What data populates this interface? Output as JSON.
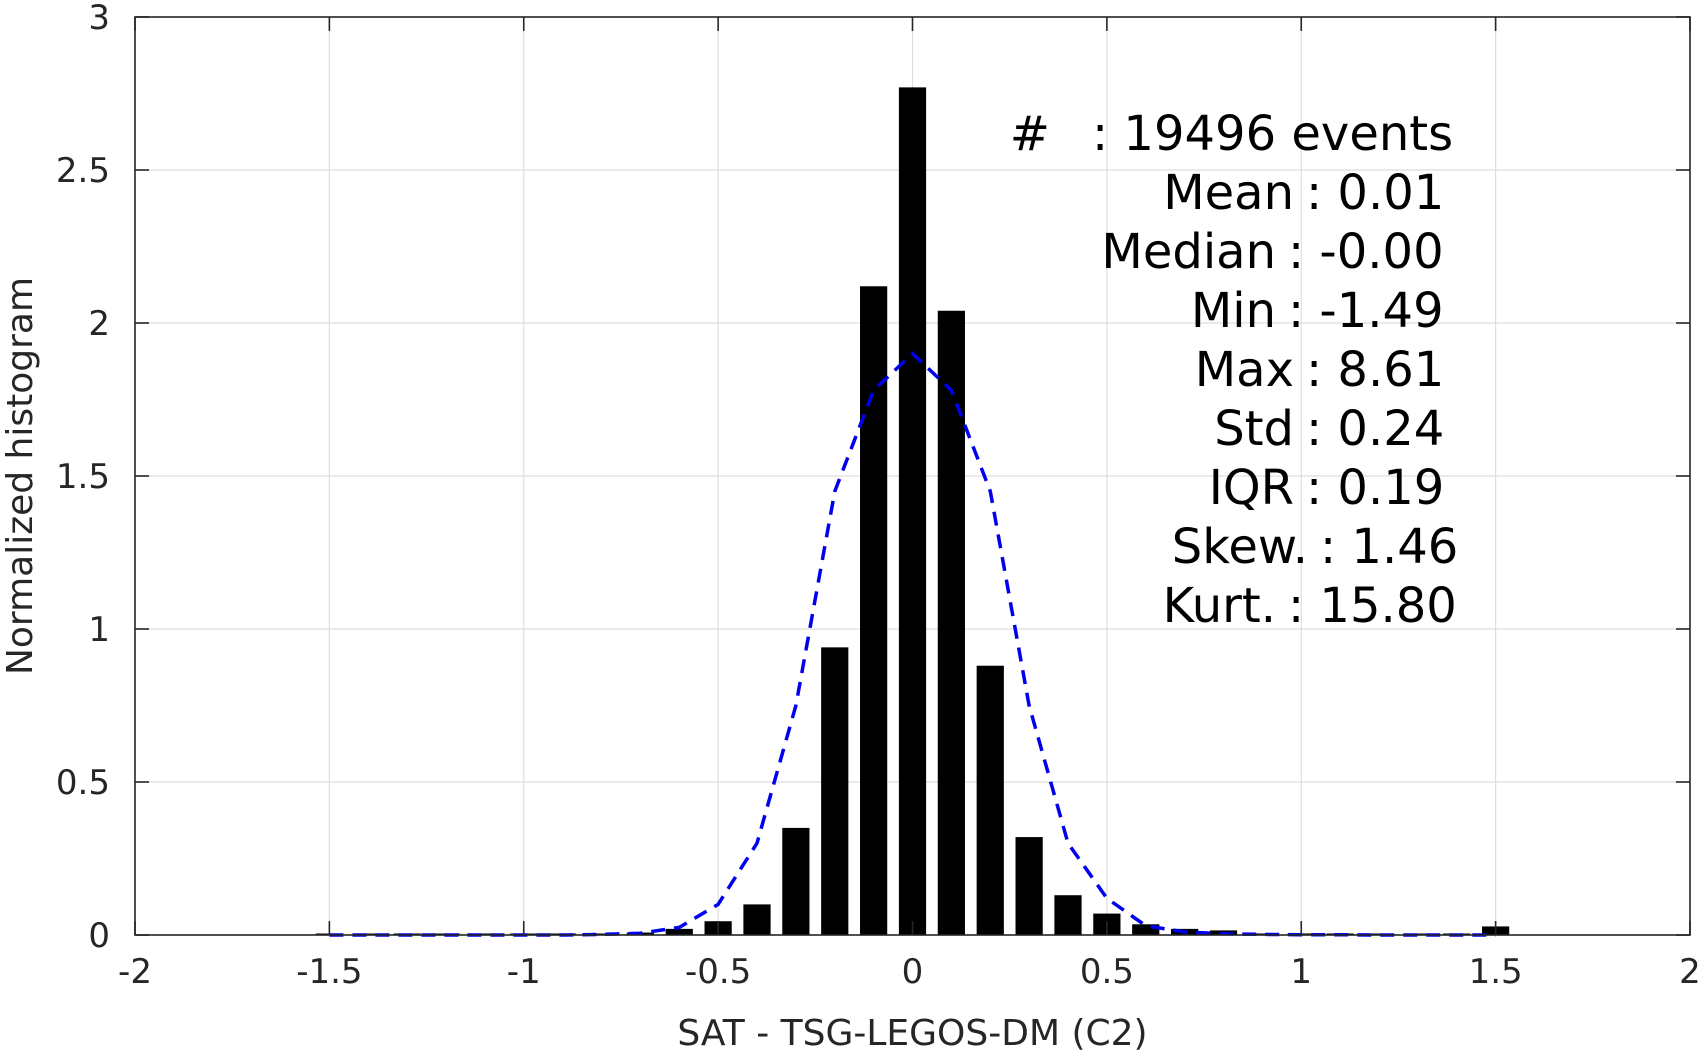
{
  "chart_data": {
    "type": "bar",
    "title": "",
    "xlabel": "SAT - TSG-LEGOS-DM (C2)",
    "ylabel": "Normalized histogram",
    "xlim": [
      -2,
      2
    ],
    "ylim": [
      0,
      3
    ],
    "grid": true,
    "x_ticks": [
      -2,
      -1.5,
      -1,
      -0.5,
      0,
      0.5,
      1,
      1.5,
      2
    ],
    "x_tick_labels": [
      "-2",
      "-1.5",
      "-1",
      "-0.5",
      "0",
      "0.5",
      "1",
      "1.5",
      "2"
    ],
    "y_ticks": [
      0,
      0.5,
      1,
      1.5,
      2,
      2.5,
      3
    ],
    "y_tick_labels": [
      "0",
      "0.5",
      "1",
      "1.5",
      "2",
      "2.5",
      "3"
    ],
    "bar_color": "#000000",
    "bar_width": 0.07,
    "bars": {
      "x": [
        -1.5,
        -1.4,
        -1.3,
        -1.2,
        -1.1,
        -1.0,
        -0.9,
        -0.8,
        -0.7,
        -0.6,
        -0.5,
        -0.4,
        -0.3,
        -0.2,
        -0.1,
        0.0,
        0.1,
        0.2,
        0.3,
        0.4,
        0.5,
        0.6,
        0.7,
        0.8,
        0.9,
        1.0,
        1.1,
        1.2,
        1.3,
        1.4,
        1.5
      ],
      "values": [
        0.002,
        0.001,
        0.001,
        0.001,
        0.001,
        0.001,
        0.002,
        0.005,
        0.008,
        0.02,
        0.045,
        0.1,
        0.35,
        0.94,
        2.12,
        2.77,
        2.04,
        0.88,
        0.32,
        0.13,
        0.07,
        0.035,
        0.02,
        0.015,
        0.005,
        0.005,
        0.005,
        0.003,
        0.002,
        0.002,
        0.028
      ]
    },
    "fit_curve": {
      "style": "dashed",
      "color": "#0000ee",
      "x": [
        -1.5,
        -1.4,
        -1.3,
        -1.2,
        -1.1,
        -1.0,
        -0.9,
        -0.8,
        -0.7,
        -0.6,
        -0.5,
        -0.4,
        -0.3,
        -0.2,
        -0.1,
        0.0,
        0.1,
        0.2,
        0.3,
        0.4,
        0.5,
        0.6,
        0.7,
        0.8,
        0.9,
        1.0,
        1.1,
        1.2,
        1.3,
        1.4,
        1.5
      ],
      "y": [
        0,
        0,
        0,
        0,
        0,
        0,
        0,
        0.002,
        0.006,
        0.025,
        0.1,
        0.3,
        0.75,
        1.45,
        1.78,
        1.9,
        1.78,
        1.45,
        0.75,
        0.3,
        0.12,
        0.03,
        0.01,
        0.004,
        0.002,
        0.001,
        0.001,
        0,
        0,
        0,
        0
      ]
    },
    "annotations": [
      {
        "left": "#",
        "right": ": 19496 events"
      },
      {
        "left": "Mean",
        "right": ": 0.01"
      },
      {
        "left": "Median",
        "right": ": -0.00"
      },
      {
        "left": "Min",
        "right": ": -1.49"
      },
      {
        "left": "Max",
        "right": ": 8.61"
      },
      {
        "left": "Std",
        "right": ": 0.24"
      },
      {
        "left": "IQR",
        "right": ": 0.19"
      },
      {
        "left": "Skew.",
        "right": ": 1.46"
      },
      {
        "left": "Kurt.",
        "right": ": 15.80"
      }
    ]
  }
}
